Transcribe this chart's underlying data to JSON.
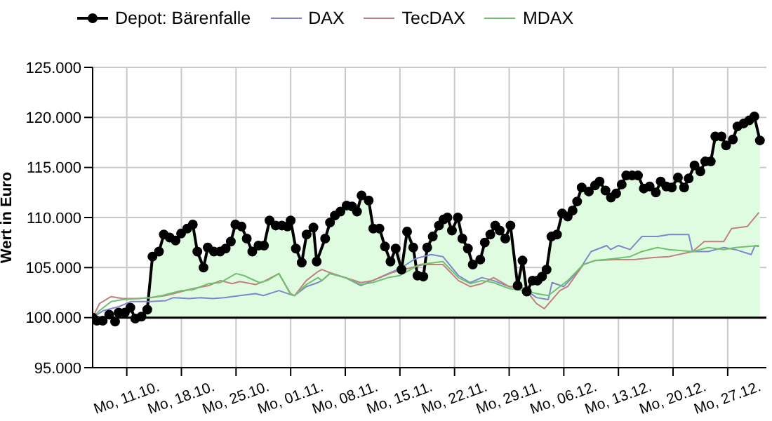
{
  "chart_data": {
    "type": "line",
    "ylabel": "Wert in Euro",
    "xlim": [
      "--10-06T15:00",
      "--12-31T23:00"
    ],
    "xticks": [
      {
        "value": "--10-11",
        "label": "Mo, 11.10."
      },
      {
        "value": "--10-18",
        "label": "Mo, 18.10."
      },
      {
        "value": "--10-25",
        "label": "Mo, 25.10."
      },
      {
        "value": "--11-01",
        "label": "Mo, 01.11."
      },
      {
        "value": "--11-08",
        "label": "Mo, 08.11."
      },
      {
        "value": "--11-15",
        "label": "Mo, 15.11."
      },
      {
        "value": "--11-22",
        "label": "Mo, 22.11."
      },
      {
        "value": "--11-29",
        "label": "Mo, 29.11."
      },
      {
        "value": "--12-06",
        "label": "Mo, 06.12."
      },
      {
        "value": "--12-13",
        "label": "Mo, 13.12."
      },
      {
        "value": "--12-20",
        "label": "Mo, 20.12."
      },
      {
        "value": "--12-27",
        "label": "Mo, 27.12."
      }
    ],
    "ylim": [
      95000,
      125000
    ],
    "yticks": [
      {
        "value": 95000,
        "label": "95.000"
      },
      {
        "value": 100000,
        "label": "100.000"
      },
      {
        "value": 105000,
        "label": "105.000"
      },
      {
        "value": 110000,
        "label": "110.000"
      },
      {
        "value": 115000,
        "label": "115.000"
      },
      {
        "value": 120000,
        "label": "120.000"
      },
      {
        "value": 125000,
        "label": "125.000"
      }
    ],
    "grid": true,
    "legend": "top left",
    "ref_lines": [
      {
        "axis": "y",
        "value": 100000,
        "color": "#000000"
      }
    ],
    "series": [
      {
        "name": "Depot: Bärenfalle",
        "type": "area",
        "color": "#000000",
        "marker": "circle",
        "x": [
          "--10-06T15:00",
          "--10-07T04:00",
          "--10-07T22:00",
          "--10-08T18:00",
          "--10-09T12:00",
          "--10-09T23:00",
          "--10-10T18:00",
          "--10-11T11:00",
          "--10-12T02:00",
          "--10-12T21:00",
          "--10-13T15:00",
          "--10-14T07:00",
          "--10-15T03:00",
          "--10-15T18:00",
          "--10-16T12:00",
          "--10-17T06:00",
          "--10-17T23:00",
          "--10-18T18:00",
          "--10-19T11:00",
          "--10-20T01:00",
          "--10-20T20:00",
          "--10-21T09:00",
          "--10-22T04:00",
          "--10-22T23:00",
          "--10-23T16:00",
          "--10-24T08:00",
          "--10-24T22:00",
          "--10-25T17:00",
          "--10-26T09:00",
          "--10-27T02:00",
          "--10-27T21:00",
          "--10-28T14:00",
          "--10-29T07:00",
          "--10-30T02:00",
          "--10-30T21:00",
          "--10-31T14:00",
          "--11-01T00:00",
          "--11-01T16:00",
          "--11-02T10:00",
          "--11-03T01:00",
          "--11-03T22:00",
          "--11-04T08:00",
          "--11-05T10:00",
          "--11-06T01:00",
          "--11-06T16:00",
          "--11-07T09:00",
          "--11-08T04:00",
          "--11-08T21:00",
          "--11-09T12:00",
          "--11-10T02:00",
          "--11-11T00:00",
          "--11-11T14:00",
          "--11-12T09:00",
          "--11-13T02:00",
          "--11-13T19:00",
          "--11-14T11:00",
          "--11-15T05:00",
          "--11-15T22:00",
          "--11-16T17:00",
          "--11-17T06:00",
          "--11-18T00:00",
          "--11-18T12:00",
          "--11-19T05:00",
          "--11-20T00:00",
          "--11-20T14:00",
          "--11-21T02:00",
          "--11-21T16:00",
          "--11-22T10:00",
          "--11-23T00:00",
          "--11-23T17:00",
          "--11-24T08:00",
          "--11-25T07:00",
          "--11-25T21:00",
          "--11-26T14:00",
          "--11-27T05:00",
          "--11-27T19:00",
          "--11-28T12:00",
          "--11-29T04:00",
          "--11-30T02:00",
          "--11-30T17:00",
          "--12-01T06:00",
          "--12-02T00:00",
          "--12-02T15:00",
          "--12-03T05:00",
          "--12-03T19:00",
          "--12-04T10:00",
          "--12-05T03:00",
          "--12-05T19:00",
          "--12-06T12:00",
          "--12-07T03:00",
          "--12-07T17:00",
          "--12-08T07:00",
          "--12-09T05:00",
          "--12-10T00:00",
          "--12-10T14:00",
          "--12-11T08:00",
          "--12-12T01:00",
          "--12-12T17:00",
          "--12-13T10:00",
          "--12-14T00:00",
          "--12-14T18:00",
          "--12-15T12:00",
          "--12-16T06:00",
          "--12-17T00:00",
          "--12-17T19:00",
          "--12-18T10:00",
          "--12-19T03:00",
          "--12-19T20:00",
          "--12-20T15:00",
          "--12-21T10:00",
          "--12-22T00:00",
          "--12-22T18:00",
          "--12-23T12:00",
          "--12-24T03:00",
          "--12-24T20:00",
          "--12-25T10:00",
          "--12-26T05:00",
          "--12-26T19:00",
          "--12-27T16:00",
          "--12-28T06:00",
          "--12-29T01:00",
          "--12-29T18:00",
          "--12-30T10:00",
          "--12-31T03:00"
        ],
        "values": [
          100000,
          99700,
          99700,
          100300,
          99600,
          100500,
          100500,
          101000,
          99900,
          100100,
          100800,
          106100,
          106600,
          108300,
          108000,
          107700,
          108400,
          108900,
          109300,
          106600,
          105000,
          107000,
          106600,
          106600,
          106900,
          107600,
          109300,
          109100,
          107900,
          106600,
          107200,
          107200,
          109700,
          109200,
          109200,
          109100,
          109700,
          106900,
          105500,
          108300,
          109000,
          105600,
          107900,
          109500,
          110200,
          110600,
          111200,
          111100,
          110600,
          112200,
          111700,
          108900,
          108900,
          107100,
          105600,
          106900,
          104800,
          108600,
          107000,
          104200,
          104100,
          107000,
          108100,
          109200,
          109800,
          110000,
          108700,
          110000,
          107900,
          106900,
          105300,
          105800,
          107500,
          108300,
          109200,
          108700,
          107900,
          109200,
          103200,
          105700,
          102600,
          103700,
          103700,
          104100,
          104800,
          108100,
          108300,
          110400,
          110100,
          110700,
          111600,
          113000,
          112600,
          113200,
          113600,
          112700,
          112000,
          112400,
          113300,
          114200,
          114200,
          114200,
          112900,
          113100,
          112500,
          113600,
          113100,
          113000,
          114000,
          113000,
          113900,
          115200,
          114600,
          115600,
          115600,
          118100,
          118100,
          117200,
          117800,
          119100,
          119400,
          119700,
          120100,
          117700
        ]
      },
      {
        "name": "DAX",
        "color": "#7f86cc",
        "x": [
          "--10-06T15:00",
          "--10-08T00:00",
          "--10-10T00:00",
          "--10-11T12:00",
          "--10-14T00:00",
          "--10-16T00:00",
          "--10-17T00:00",
          "--10-19T00:00",
          "--10-20T12:00",
          "--10-22T00:00",
          "--10-23T12:00",
          "--10-25T12:00",
          "--10-27T12:00",
          "--10-28T12:00",
          "--10-30T12:00",
          "--11-01T00:00",
          "--11-01T12:00",
          "--11-03T00:00",
          "--11-04T12:00",
          "--11-05T00:00",
          "--11-06T00:00",
          "--11-08T00:00",
          "--11-10T00:00",
          "--11-11T12:00",
          "--11-13T12:00",
          "--11-15T00:00",
          "--11-17T00:00",
          "--11-19T00:00",
          "--11-20T12:00",
          "--11-22T12:00",
          "--11-24T00:00",
          "--11-25T12:00",
          "--11-27T00:00",
          "--11-29T00:00",
          "--11-30T12:00",
          "--12-02T12:00",
          "--12-04T00:00",
          "--12-04T12:00",
          "--12-06T00:00",
          "--12-08T00:00",
          "--12-09T12:00",
          "--12-11T12:00",
          "--12-12T00:00",
          "--12-13T00:00",
          "--12-14T12:00",
          "--12-16T00:00",
          "--12-18T00:00",
          "--12-19T12:00",
          "--12-22T00:00",
          "--12-22T12:00",
          "--12-24T12:00",
          "--12-26T12:00",
          "--12-28T00:00",
          "--12-30T00:00",
          "--12-30T12:00",
          "--12-31T00:00"
        ],
        "values": [
          100000,
          100700,
          101100,
          101600,
          101600,
          101700,
          102000,
          101900,
          102000,
          101900,
          102000,
          102200,
          102400,
          102200,
          102700,
          102300,
          102200,
          103100,
          103500,
          103700,
          104400,
          104000,
          103200,
          103700,
          104400,
          104900,
          105900,
          106300,
          106100,
          104200,
          103500,
          104000,
          103700,
          103100,
          103100,
          102000,
          101800,
          103500,
          103100,
          104800,
          106600,
          107200,
          106800,
          107200,
          106800,
          108100,
          108100,
          108300,
          108300,
          106600,
          106600,
          107000,
          106800,
          106300,
          107200,
          107100
        ]
      },
      {
        "name": "TecDAX",
        "color": "#c08080",
        "x": [
          "--10-06T15:00",
          "--10-07T12:00",
          "--10-09T00:00",
          "--10-10T12:00",
          "--10-12T12:00",
          "--10-14T00:00",
          "--10-16T00:00",
          "--10-18T00:00",
          "--10-19T12:00",
          "--10-21T12:00",
          "--10-23T00:00",
          "--10-24T12:00",
          "--10-25T12:00",
          "--10-27T12:00",
          "--10-28T12:00",
          "--10-30T12:00",
          "--11-01T00:00",
          "--11-01T12:00",
          "--11-03T00:00",
          "--11-04T12:00",
          "--11-05T00:00",
          "--11-06T00:00",
          "--11-08T00:00",
          "--11-10T00:00",
          "--11-11T12:00",
          "--11-14T00:00",
          "--11-16T00:00",
          "--11-18T00:00",
          "--11-20T12:00",
          "--11-22T12:00",
          "--11-24T00:00",
          "--11-25T12:00",
          "--11-27T00:00",
          "--11-29T00:00",
          "--12-01T00:00",
          "--12-02T12:00",
          "--12-03T12:00",
          "--12-05T12:00",
          "--12-06T12:00",
          "--12-08T12:00",
          "--12-10T00:00",
          "--12-12T12:00",
          "--12-15T00:00",
          "--12-17T12:00",
          "--12-19T12:00",
          "--12-22T12:00",
          "--12-24T00:00",
          "--12-26T12:00",
          "--12-27T12:00",
          "--12-29T12:00",
          "--12-31T00:00"
        ],
        "values": [
          100000,
          101400,
          102100,
          101900,
          101900,
          102000,
          102200,
          102600,
          102900,
          103200,
          103700,
          103400,
          103600,
          103300,
          103600,
          104400,
          102400,
          102200,
          103700,
          104600,
          104800,
          104500,
          104000,
          103500,
          103700,
          104500,
          104900,
          105300,
          105300,
          103700,
          103100,
          103400,
          104000,
          103100,
          102900,
          101400,
          100900,
          102700,
          103100,
          105300,
          105700,
          105800,
          105800,
          106000,
          106100,
          106600,
          107600,
          107600,
          108900,
          109100,
          110500
        ]
      },
      {
        "name": "MDAX",
        "color": "#70c070",
        "x": [
          "--10-06T15:00",
          "--10-07T12:00",
          "--10-09T00:00",
          "--10-10T12:00",
          "--10-12T12:00",
          "--10-14T00:00",
          "--10-15T12:00",
          "--10-18T00:00",
          "--10-19T12:00",
          "--10-21T12:00",
          "--10-23T00:00",
          "--10-25T00:00",
          "--10-26T00:00",
          "--10-28T00:00",
          "--10-29T00:00",
          "--10-30T12:00",
          "--11-01T00:00",
          "--11-01T12:00",
          "--11-03T00:00",
          "--11-04T12:00",
          "--11-05T00:00",
          "--11-06T00:00",
          "--11-08T00:00",
          "--11-10T00:00",
          "--11-11T12:00",
          "--11-13T12:00",
          "--11-15T00:00",
          "--11-17T12:00",
          "--11-20T12:00",
          "--11-22T12:00",
          "--11-24T00:00",
          "--11-25T12:00",
          "--11-27T00:00",
          "--11-29T00:00",
          "--12-01T00:00",
          "--12-02T12:00",
          "--12-04T00:00",
          "--12-05T12:00",
          "--12-06T12:00",
          "--12-08T12:00",
          "--12-10T00:00",
          "--12-12T12:00",
          "--12-14T12:00",
          "--12-16T00:00",
          "--12-18T00:00",
          "--12-19T12:00",
          "--12-22T12:00",
          "--12-24T12:00",
          "--12-26T12:00",
          "--12-28T00:00",
          "--12-31T00:00"
        ],
        "values": [
          100000,
          100700,
          101600,
          101800,
          101900,
          102000,
          102200,
          102700,
          102800,
          103400,
          103500,
          104400,
          104200,
          103500,
          103700,
          104400,
          102300,
          102200,
          103300,
          104000,
          103700,
          104400,
          104000,
          103300,
          103500,
          104000,
          104200,
          105300,
          105600,
          104000,
          103400,
          103700,
          103500,
          102900,
          102700,
          102400,
          102200,
          103100,
          103700,
          105300,
          105700,
          105900,
          106100,
          106600,
          107000,
          106800,
          106600,
          107000,
          106800,
          107000,
          107200
        ]
      }
    ]
  }
}
